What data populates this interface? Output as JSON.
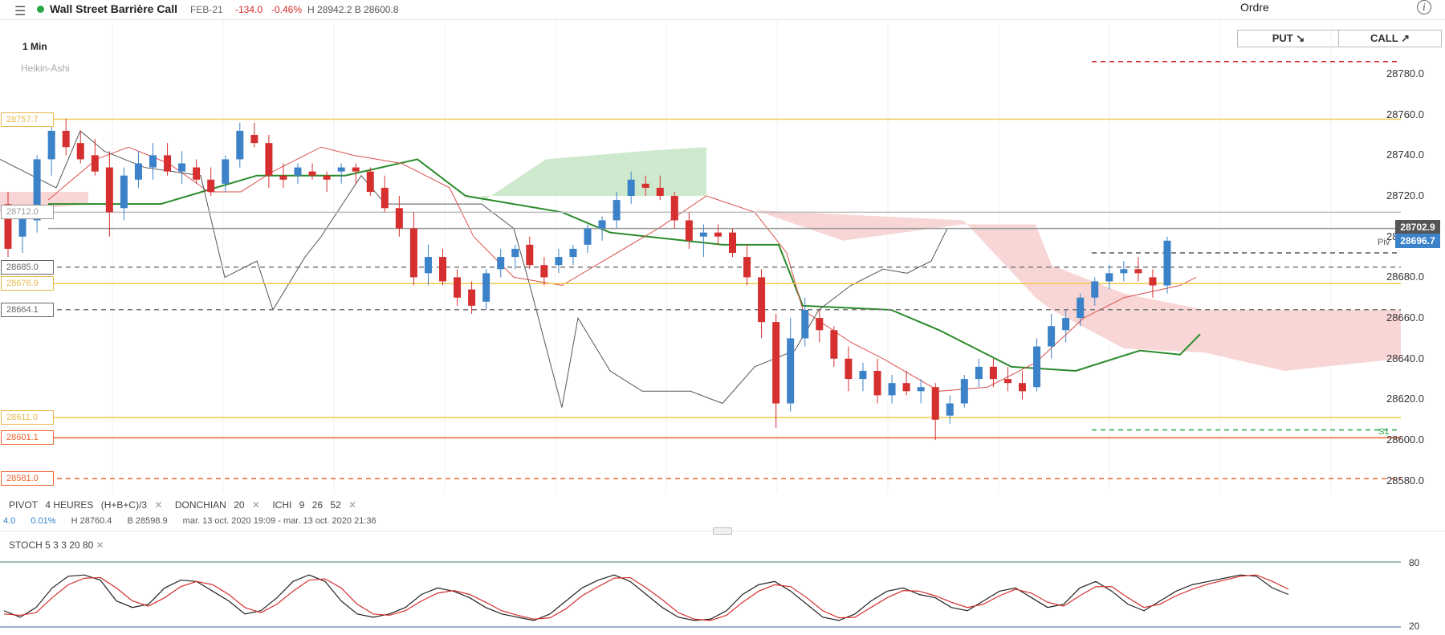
{
  "header": {
    "menu_icon": "hamburger-menu-icon",
    "instrument": "Wall Street Barrière Call",
    "expiry": "FEB-21",
    "change": "-134.0",
    "change_pct": "-0.46%",
    "high_low": "H 28942.2  B 28600.8",
    "order_title": "Ordre",
    "info_icon": "info-icon"
  },
  "order": {
    "put_label": "PUT ↘",
    "call_label": "CALL ↗"
  },
  "chart_meta": {
    "timeframe": "1 Min",
    "chart_style": "Heikin-Ashi"
  },
  "colors": {
    "bull": "#3b82c9",
    "bear": "#d62f2f",
    "green_line": "#2a8a2a",
    "kijun": "#d9534f",
    "cloud_green": "#cfe9cf",
    "cloud_red": "#f9d6d6",
    "yellow_level": "#f2c94c",
    "orange_level": "#f0642e"
  },
  "levels": {
    "y_ticks": [
      "28780.0",
      "28760.0",
      "28740.0",
      "28720.0",
      "28700.0",
      "28680.0",
      "28660.0",
      "28640.0",
      "28620.0",
      "28600.0",
      "28580.0"
    ],
    "left_tags": [
      {
        "label": "28757.7",
        "color": "#e8b84a"
      },
      {
        "label": "28712.0",
        "color": "#999999"
      },
      {
        "label": "28685.0",
        "color": "#666666"
      },
      {
        "label": "28676.9",
        "color": "#e8b84a"
      },
      {
        "label": "28664.1",
        "color": "#666666"
      },
      {
        "label": "28611.0",
        "color": "#e8b84a"
      },
      {
        "label": "28601.1",
        "color": "#f0642e"
      },
      {
        "label": "28581.0",
        "color": "#f0642e"
      }
    ],
    "price_tags": [
      "28702.9",
      "28696.7"
    ],
    "piv_label": "Piv",
    "s1_label": "S1"
  },
  "indicators": {
    "pivot": [
      "PIVOT",
      "4 HEURES",
      "(H+B+C)/3"
    ],
    "donchian": [
      "DONCHIAN",
      "20"
    ],
    "ichi": [
      "ICHI",
      "9",
      "26",
      "52"
    ],
    "close_icon": "close-x-icon"
  },
  "info_row": [
    "4.0",
    "0.01%",
    "H 28760.4",
    "B 28598.9",
    "mar. 13 oct. 2020 19:09 - mar. 13 oct. 2020 21:36"
  ],
  "stoch": {
    "header": [
      "STOCH",
      "5",
      "3",
      "3",
      "20",
      "80"
    ],
    "level_80": "80",
    "level_20": "20"
  },
  "chart_data": {
    "type": "candlestick",
    "chart_style": "Heikin-Ashi",
    "interval": "1 Min",
    "ylim": [
      28574,
      28795
    ],
    "series": [
      {
        "name": "Heikin-Ashi",
        "values": [
          [
            28716,
            28722,
            28690,
            28694
          ],
          [
            28700,
            28712,
            28692,
            28710
          ],
          [
            28708,
            28740,
            28702,
            28738
          ],
          [
            28738,
            28760,
            28730,
            28752
          ],
          [
            28752,
            28758,
            28740,
            28744
          ],
          [
            28746,
            28752,
            28736,
            28738
          ],
          [
            28740,
            28748,
            28730,
            28732
          ],
          [
            28734,
            28742,
            28700,
            28712
          ],
          [
            28714,
            28734,
            28708,
            28730
          ],
          [
            28728,
            28742,
            28724,
            28736
          ],
          [
            28734,
            28746,
            28728,
            28740
          ],
          [
            28740,
            28746,
            28730,
            28732
          ],
          [
            28732,
            28742,
            28726,
            28736
          ],
          [
            28734,
            28738,
            28726,
            28728
          ],
          [
            28728,
            28734,
            28720,
            28722
          ],
          [
            28726,
            28740,
            28722,
            28738
          ],
          [
            28738,
            28756,
            28734,
            28752
          ],
          [
            28750,
            28756,
            28744,
            28746
          ],
          [
            28746,
            28750,
            28724,
            28730
          ],
          [
            28730,
            28736,
            28724,
            28728
          ],
          [
            28730,
            28736,
            28726,
            28734
          ],
          [
            28732,
            28736,
            28728,
            28730
          ],
          [
            28730,
            28732,
            28722,
            28728
          ],
          [
            28732,
            28736,
            28726,
            28734
          ],
          [
            28734,
            28736,
            28726,
            28732
          ],
          [
            28732,
            28734,
            28720,
            28722
          ],
          [
            28724,
            28730,
            28712,
            28714
          ],
          [
            28714,
            28720,
            28700,
            28704
          ],
          [
            28704,
            28712,
            28676,
            28680
          ],
          [
            28682,
            28696,
            28676,
            28690
          ],
          [
            28690,
            28694,
            28676,
            28678
          ],
          [
            28680,
            28684,
            28666,
            28670
          ],
          [
            28674,
            28678,
            28662,
            28666
          ],
          [
            28668,
            28684,
            28664,
            28682
          ],
          [
            28684,
            28694,
            28680,
            28690
          ],
          [
            28690,
            28696,
            28684,
            28694
          ],
          [
            28696,
            28700,
            28684,
            28686
          ],
          [
            28686,
            28690,
            28676,
            28680
          ],
          [
            28686,
            28694,
            28682,
            28690
          ],
          [
            28690,
            28696,
            28686,
            28694
          ],
          [
            28696,
            28706,
            28692,
            28704
          ],
          [
            28704,
            28710,
            28698,
            28708
          ],
          [
            28708,
            28722,
            28704,
            28718
          ],
          [
            28720,
            28732,
            28716,
            28728
          ],
          [
            28726,
            28730,
            28720,
            28724
          ],
          [
            28724,
            28730,
            28718,
            28720
          ],
          [
            28720,
            28722,
            28704,
            28708
          ],
          [
            28708,
            28712,
            28694,
            28698
          ],
          [
            28700,
            28706,
            28690,
            28702
          ],
          [
            28702,
            28706,
            28696,
            28700
          ],
          [
            28702,
            28704,
            28690,
            28692
          ],
          [
            28690,
            28696,
            28676,
            28680
          ],
          [
            28680,
            28684,
            28650,
            28658
          ],
          [
            28658,
            28662,
            28606,
            28618
          ],
          [
            28618,
            28660,
            28614,
            28650
          ],
          [
            28650,
            28670,
            28646,
            28664
          ],
          [
            28660,
            28664,
            28648,
            28654
          ],
          [
            28654,
            28656,
            28636,
            28640
          ],
          [
            28640,
            28646,
            28624,
            28630
          ],
          [
            28630,
            28638,
            28624,
            28634
          ],
          [
            28634,
            28640,
            28618,
            28622
          ],
          [
            28622,
            28632,
            28618,
            28628
          ],
          [
            28628,
            28634,
            28622,
            28624
          ],
          [
            28624,
            28630,
            28618,
            28626
          ],
          [
            28626,
            28628,
            28600,
            28610
          ],
          [
            28612,
            28622,
            28608,
            28618
          ],
          [
            28618,
            28632,
            28616,
            28630
          ],
          [
            28630,
            28640,
            28626,
            28636
          ],
          [
            28636,
            28640,
            28626,
            28630
          ],
          [
            28630,
            28636,
            28624,
            28628
          ],
          [
            28628,
            28634,
            28620,
            28624
          ],
          [
            28626,
            28650,
            28624,
            28646
          ],
          [
            28646,
            28662,
            28640,
            28656
          ],
          [
            28654,
            28664,
            28648,
            28660
          ],
          [
            28660,
            28672,
            28656,
            28670
          ],
          [
            28670,
            28680,
            28666,
            28678
          ],
          [
            28678,
            28686,
            28674,
            28682
          ],
          [
            28682,
            28688,
            28678,
            28684
          ],
          [
            28684,
            28690,
            28678,
            28682
          ],
          [
            28680,
            28684,
            28670,
            28676
          ],
          [
            28676,
            28700,
            28672,
            28698
          ]
        ]
      }
    ]
  }
}
